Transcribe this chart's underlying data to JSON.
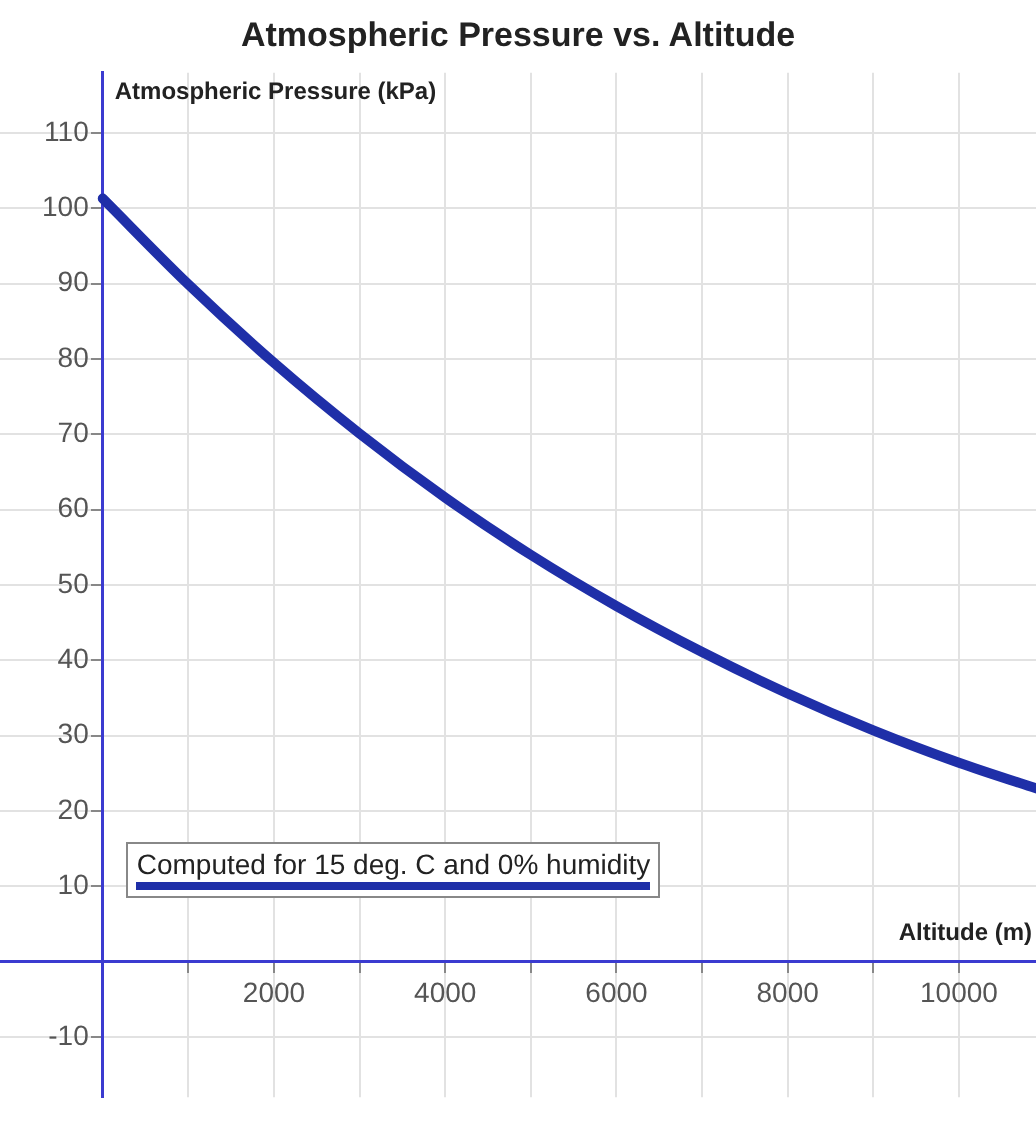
{
  "chart_data": {
    "type": "line",
    "title": "Atmospheric Pressure vs. Altitude",
    "xlabel": "Altitude (m)",
    "ylabel": "Atmospheric Pressure (kPa)",
    "xlim": [
      -1200,
      10900
    ],
    "ylim": [
      -18,
      118
    ],
    "xticks": [
      {
        "value": 0,
        "label": null
      },
      {
        "value": 1000,
        "label": null
      },
      2000,
      {
        "value": 3000,
        "label": null
      },
      4000,
      {
        "value": 5000,
        "label": null
      },
      6000,
      {
        "value": 7000,
        "label": null
      },
      8000,
      {
        "value": 9000,
        "label": null
      },
      10000
    ],
    "yticks": [
      -10,
      {
        "value": 0,
        "label": null
      },
      10,
      20,
      30,
      40,
      50,
      60,
      70,
      80,
      90,
      100,
      110
    ],
    "x": [
      0,
      1000,
      2000,
      3000,
      4000,
      5000,
      6000,
      7000,
      8000,
      9000,
      10000,
      10900
    ],
    "series": [
      {
        "name": "Computed for 15 deg. C and 0% humidity",
        "color": "#1f2fa8",
        "values": [
          101.3,
          89.9,
          79.5,
          70.1,
          61.6,
          54.0,
          47.2,
          41.1,
          35.6,
          30.7,
          26.4,
          23.0
        ]
      }
    ],
    "grid": true,
    "legend": "bottom left",
    "marker": "none",
    "line_style": "solid"
  }
}
